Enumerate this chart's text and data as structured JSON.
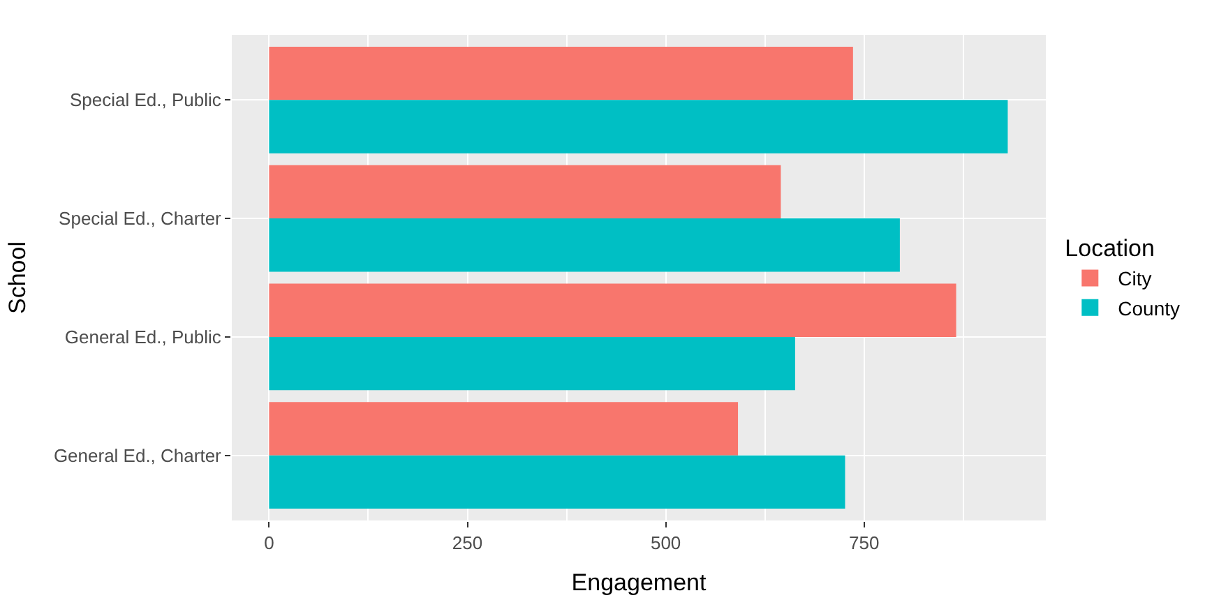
{
  "chart_data": {
    "type": "bar",
    "orientation": "horizontal",
    "xlabel": "Engagement",
    "ylabel": "School",
    "legend_title": "Location",
    "categories": [
      "Special Ed., Public",
      "Special Ed., Charter",
      "General Ed., Public",
      "General Ed., Charter"
    ],
    "series": [
      {
        "name": "City",
        "color": "#f8766d",
        "values": [
          736,
          645,
          866,
          591
        ]
      },
      {
        "name": "County",
        "color": "#00bfc4",
        "values": [
          931,
          795,
          663,
          726
        ]
      }
    ],
    "xlim": [
      -47,
      979
    ],
    "xticks": [
      0,
      250,
      500,
      750
    ],
    "grid": true,
    "legend": "right"
  }
}
